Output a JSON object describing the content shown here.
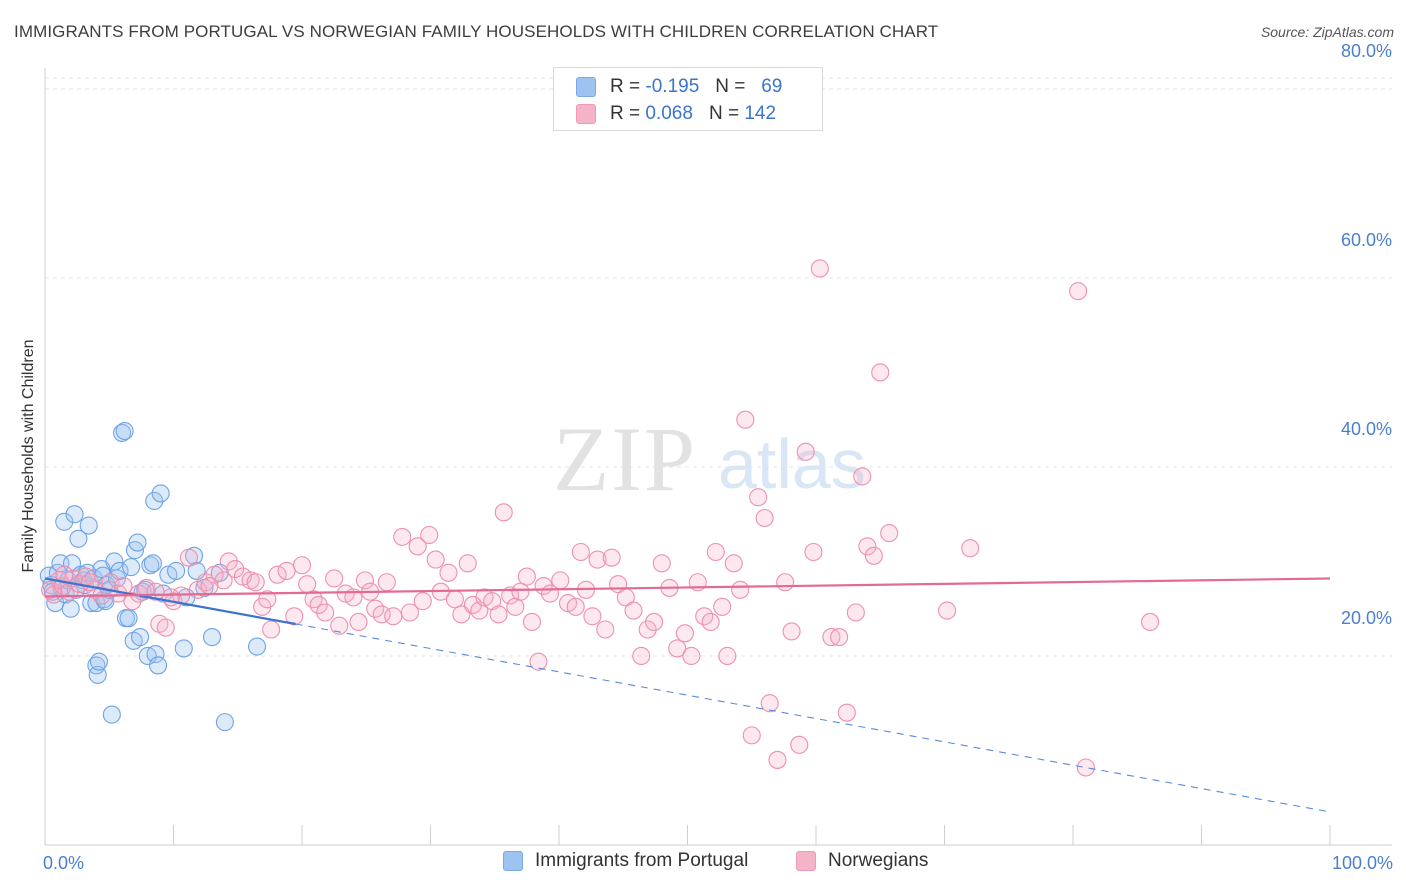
{
  "title": "IMMIGRANTS FROM PORTUGAL VS NORWEGIAN FAMILY HOUSEHOLDS WITH CHILDREN CORRELATION CHART",
  "source": "Source: ZipAtlas.com",
  "watermark": {
    "zip": "ZIP",
    "atlas": "atlas"
  },
  "legend": {
    "rows": [
      {
        "r_label": "R =",
        "r_value": "-0.195",
        "n_label": "N =",
        "n_value": "69",
        "color": "#9ec3f0"
      },
      {
        "r_label": "R =",
        "r_value": "0.068",
        "n_label": "N =",
        "n_value": "142",
        "color": "#f5b3c8"
      }
    ]
  },
  "bottom_legend": {
    "items": [
      {
        "label": "Immigrants from Portugal",
        "color": "#9ec3f0"
      },
      {
        "label": "Norwegians",
        "color": "#f5b3c8"
      }
    ]
  },
  "chart_data": {
    "type": "scatter",
    "title": "IMMIGRANTS FROM PORTUGAL VS NORWEGIAN FAMILY HOUSEHOLDS WITH CHILDREN CORRELATION CHART",
    "xlabel": "",
    "ylabel": "Family Households with Children",
    "xlim": [
      0,
      100
    ],
    "ylim": [
      0,
      82
    ],
    "x_tick_labels": [
      "0.0%",
      "100.0%"
    ],
    "y_ticks": [
      20,
      40,
      60,
      80
    ],
    "y_tick_labels": [
      "20.0%",
      "40.0%",
      "60.0%",
      "80.0%"
    ],
    "grid": true,
    "legend_position": "top-center",
    "series": [
      {
        "name": "Immigrants from Portugal",
        "color": "#6ea3e6",
        "trend": {
          "x0": 0,
          "y0": 28.2,
          "x1": 100,
          "y1": 3.5,
          "solid_until": 19.5
        },
        "points": [
          [
            0.3,
            28.5
          ],
          [
            0.5,
            27.5
          ],
          [
            0.6,
            26.8
          ],
          [
            0.8,
            25.6
          ],
          [
            1.0,
            28.8
          ],
          [
            1.2,
            29.8
          ],
          [
            1.3,
            27.2
          ],
          [
            1.5,
            34.2
          ],
          [
            1.6,
            26.5
          ],
          [
            1.8,
            28.0
          ],
          [
            2.0,
            25.0
          ],
          [
            2.1,
            29.8
          ],
          [
            2.3,
            35.0
          ],
          [
            2.4,
            27.0
          ],
          [
            2.6,
            32.4
          ],
          [
            2.8,
            28.6
          ],
          [
            3.0,
            28.0
          ],
          [
            3.1,
            27.5
          ],
          [
            3.3,
            28.8
          ],
          [
            3.4,
            33.8
          ],
          [
            3.6,
            25.6
          ],
          [
            3.8,
            28.2
          ],
          [
            4.0,
            25.6
          ],
          [
            4.0,
            19.0
          ],
          [
            4.1,
            18.0
          ],
          [
            4.2,
            19.4
          ],
          [
            4.4,
            29.2
          ],
          [
            4.5,
            28.5
          ],
          [
            4.6,
            26.0
          ],
          [
            4.7,
            25.8
          ],
          [
            4.8,
            27.5
          ],
          [
            5.0,
            27.0
          ],
          [
            5.2,
            13.8
          ],
          [
            5.4,
            30.0
          ],
          [
            5.6,
            28.2
          ],
          [
            5.8,
            29.0
          ],
          [
            6.0,
            43.6
          ],
          [
            6.2,
            43.8
          ],
          [
            6.3,
            24.0
          ],
          [
            6.5,
            24.0
          ],
          [
            6.7,
            29.4
          ],
          [
            6.9,
            21.6
          ],
          [
            7.0,
            31.2
          ],
          [
            7.2,
            32.0
          ],
          [
            7.4,
            22.0
          ],
          [
            7.6,
            26.8
          ],
          [
            7.8,
            27.0
          ],
          [
            8.0,
            20.0
          ],
          [
            8.2,
            29.6
          ],
          [
            8.4,
            29.8
          ],
          [
            8.5,
            36.4
          ],
          [
            8.6,
            20.2
          ],
          [
            8.8,
            19.0
          ],
          [
            9.0,
            37.2
          ],
          [
            9.2,
            26.6
          ],
          [
            9.6,
            28.6
          ],
          [
            10.2,
            29.0
          ],
          [
            10.8,
            20.8
          ],
          [
            11.0,
            26.2
          ],
          [
            11.6,
            30.6
          ],
          [
            11.8,
            29.0
          ],
          [
            12.4,
            27.2
          ],
          [
            13.0,
            22.0
          ],
          [
            13.6,
            28.8
          ],
          [
            14.0,
            13.0
          ],
          [
            16.5,
            21.0
          ]
        ]
      },
      {
        "name": "Norwegians",
        "color": "#ee8fb0",
        "trend": {
          "x0": 0,
          "y0": 26.3,
          "x1": 100,
          "y1": 28.2
        },
        "points": [
          [
            0.4,
            27.0
          ],
          [
            0.7,
            26.5
          ],
          [
            1.1,
            28.0
          ],
          [
            1.4,
            27.4
          ],
          [
            1.9,
            26.8
          ],
          [
            2.2,
            28.2
          ],
          [
            2.7,
            27.6
          ],
          [
            3.2,
            28.4
          ],
          [
            3.9,
            27.0
          ],
          [
            4.4,
            26.4
          ],
          [
            5.1,
            27.8
          ],
          [
            5.7,
            26.6
          ],
          [
            6.1,
            27.4
          ],
          [
            6.8,
            25.8
          ],
          [
            7.3,
            26.6
          ],
          [
            7.9,
            27.2
          ],
          [
            8.6,
            26.8
          ],
          [
            8.9,
            23.4
          ],
          [
            9.4,
            23.0
          ],
          [
            10.0,
            25.8
          ],
          [
            10.6,
            26.4
          ],
          [
            11.2,
            30.4
          ],
          [
            11.9,
            27.0
          ],
          [
            12.5,
            27.8
          ],
          [
            13.2,
            28.6
          ],
          [
            13.9,
            28.0
          ],
          [
            14.3,
            30.0
          ],
          [
            14.8,
            29.2
          ],
          [
            15.4,
            28.4
          ],
          [
            16.0,
            28.0
          ],
          [
            16.4,
            27.8
          ],
          [
            16.9,
            25.2
          ],
          [
            17.3,
            26.0
          ],
          [
            17.6,
            22.8
          ],
          [
            18.1,
            28.6
          ],
          [
            18.8,
            29.0
          ],
          [
            19.4,
            24.2
          ],
          [
            20.0,
            29.6
          ],
          [
            20.4,
            27.6
          ],
          [
            20.9,
            26.0
          ],
          [
            21.3,
            25.4
          ],
          [
            21.8,
            24.6
          ],
          [
            22.5,
            28.2
          ],
          [
            22.9,
            23.2
          ],
          [
            23.4,
            26.6
          ],
          [
            24.0,
            26.2
          ],
          [
            24.4,
            23.6
          ],
          [
            24.9,
            28.0
          ],
          [
            25.3,
            26.8
          ],
          [
            25.7,
            25.0
          ],
          [
            26.2,
            24.4
          ],
          [
            26.6,
            27.8
          ],
          [
            27.1,
            24.2
          ],
          [
            27.8,
            32.6
          ],
          [
            28.4,
            24.6
          ],
          [
            29.0,
            31.6
          ],
          [
            29.4,
            25.8
          ],
          [
            29.9,
            32.8
          ],
          [
            30.4,
            30.2
          ],
          [
            30.8,
            26.8
          ],
          [
            31.4,
            28.8
          ],
          [
            31.9,
            26.0
          ],
          [
            32.4,
            24.4
          ],
          [
            32.9,
            29.8
          ],
          [
            33.3,
            25.4
          ],
          [
            33.8,
            24.8
          ],
          [
            34.2,
            26.2
          ],
          [
            34.8,
            25.8
          ],
          [
            35.3,
            24.4
          ],
          [
            35.7,
            35.2
          ],
          [
            36.2,
            26.4
          ],
          [
            36.6,
            25.2
          ],
          [
            37.0,
            26.8
          ],
          [
            37.5,
            28.4
          ],
          [
            37.9,
            23.6
          ],
          [
            38.4,
            19.4
          ],
          [
            38.8,
            27.4
          ],
          [
            39.3,
            26.6
          ],
          [
            40.1,
            28.0
          ],
          [
            40.7,
            25.6
          ],
          [
            41.3,
            25.2
          ],
          [
            41.7,
            31.0
          ],
          [
            42.1,
            27.0
          ],
          [
            42.6,
            24.2
          ],
          [
            43.0,
            30.2
          ],
          [
            43.6,
            22.8
          ],
          [
            44.1,
            30.4
          ],
          [
            44.6,
            27.6
          ],
          [
            45.2,
            26.2
          ],
          [
            45.8,
            24.8
          ],
          [
            46.4,
            20.0
          ],
          [
            46.9,
            22.8
          ],
          [
            47.4,
            23.6
          ],
          [
            48.0,
            29.8
          ],
          [
            48.6,
            27.2
          ],
          [
            49.2,
            20.8
          ],
          [
            49.8,
            22.4
          ],
          [
            50.3,
            20.0
          ],
          [
            50.8,
            27.8
          ],
          [
            51.3,
            24.2
          ],
          [
            51.8,
            23.6
          ],
          [
            52.2,
            31.0
          ],
          [
            52.7,
            25.2
          ],
          [
            53.1,
            20.0
          ],
          [
            53.6,
            29.8
          ],
          [
            54.1,
            27.0
          ],
          [
            54.5,
            45.0
          ],
          [
            55.0,
            11.6
          ],
          [
            55.5,
            36.8
          ],
          [
            56.0,
            34.6
          ],
          [
            56.4,
            15.0
          ],
          [
            57.0,
            9.0
          ],
          [
            57.6,
            27.8
          ],
          [
            58.1,
            22.6
          ],
          [
            58.7,
            10.6
          ],
          [
            59.2,
            41.6
          ],
          [
            59.8,
            31.0
          ],
          [
            60.3,
            61.0
          ],
          [
            61.2,
            22.0
          ],
          [
            61.8,
            22.0
          ],
          [
            62.4,
            14.0
          ],
          [
            63.1,
            24.6
          ],
          [
            63.6,
            39.0
          ],
          [
            64.0,
            31.6
          ],
          [
            64.5,
            30.6
          ],
          [
            65.0,
            50.0
          ],
          [
            65.7,
            33.0
          ],
          [
            70.2,
            24.8
          ],
          [
            72.0,
            31.4
          ],
          [
            80.4,
            58.6
          ],
          [
            81.0,
            8.2
          ],
          [
            86.0,
            23.6
          ],
          [
            1.5,
            28.6
          ],
          [
            3.5,
            27.8
          ],
          [
            9.8,
            26.2
          ],
          [
            12.8,
            27.4
          ]
        ]
      }
    ]
  }
}
